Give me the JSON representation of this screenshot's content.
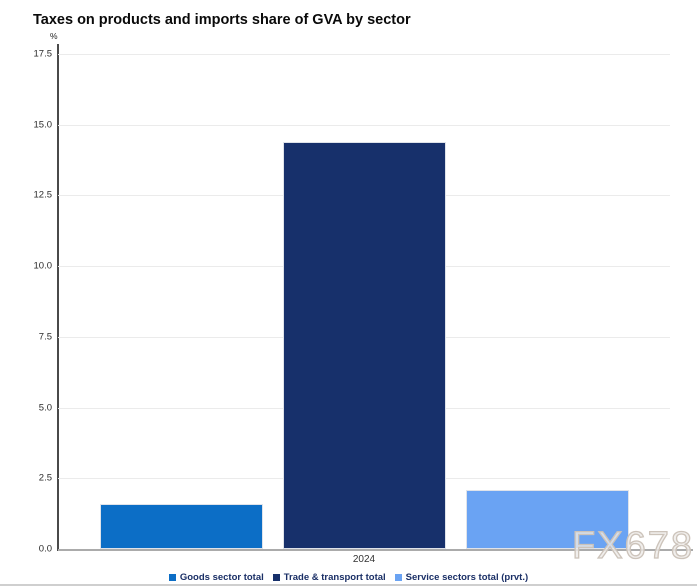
{
  "title": "Taxes on products and imports share of GVA by sector",
  "watermark": "FX678",
  "chart_data": {
    "type": "bar",
    "title": "Taxes on products and imports share of GVA by sector",
    "unit": "%",
    "categories": [
      "2024"
    ],
    "series": [
      {
        "name": "Goods sector total",
        "values": [
          1.6
        ],
        "color": "#0c6ec6"
      },
      {
        "name": "Trade & transport total",
        "values": [
          14.4
        ],
        "color": "#17306b"
      },
      {
        "name": "Service sectors total (prvt.)",
        "values": [
          2.1
        ],
        "color": "#6aa3f3"
      }
    ],
    "ylim": [
      0,
      17.5
    ],
    "yticks": [
      0.0,
      2.5,
      5.0,
      7.5,
      10.0,
      12.5,
      15.0,
      17.5
    ],
    "ytick_labels": [
      "0.0",
      "2.5",
      "5.0",
      "7.5",
      "10.0",
      "12.5",
      "15.0",
      "17.5"
    ],
    "grid": true,
    "legend_position": "bottom",
    "xlabel": "",
    "ylabel": "%"
  }
}
